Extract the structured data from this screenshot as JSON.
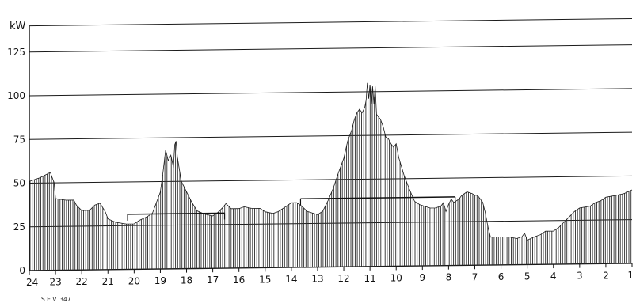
{
  "chart_data": {
    "type": "bar",
    "unit_label": "kW",
    "footnote": "S.E.V. 347",
    "ylim": [
      0,
      140
    ],
    "yticks": [
      0,
      25,
      50,
      75,
      100,
      125
    ],
    "ytick_labels": [
      "0",
      "25",
      "50",
      "75",
      "100",
      "125"
    ],
    "xlim": [
      24,
      1
    ],
    "xticks": [
      24,
      23,
      22,
      21,
      20,
      19,
      18,
      17,
      16,
      15,
      14,
      13,
      12,
      11,
      10,
      9,
      8,
      7,
      6,
      5,
      4,
      3,
      2,
      1
    ],
    "xtick_labels": [
      "24",
      "23",
      "22",
      "21",
      "20",
      "19",
      "18",
      "17",
      "16",
      "15",
      "14",
      "13",
      "12",
      "11",
      "10",
      "9",
      "8",
      "7",
      "6",
      "5",
      "4",
      "3",
      "2",
      "1"
    ],
    "grid": "horizontal",
    "profile": [
      [
        24.0,
        51
      ],
      [
        23.6,
        53
      ],
      [
        23.2,
        56
      ],
      [
        23.05,
        50
      ],
      [
        23.0,
        41
      ],
      [
        22.6,
        40
      ],
      [
        22.3,
        40
      ],
      [
        22.2,
        37
      ],
      [
        22.0,
        34
      ],
      [
        21.7,
        34
      ],
      [
        21.5,
        37
      ],
      [
        21.3,
        38
      ],
      [
        21.1,
        33
      ],
      [
        21.0,
        29
      ],
      [
        20.7,
        27
      ],
      [
        20.3,
        26
      ],
      [
        20.0,
        26
      ],
      [
        19.8,
        28
      ],
      [
        19.5,
        30
      ],
      [
        19.3,
        32
      ],
      [
        19.2,
        36
      ],
      [
        19.0,
        44
      ],
      [
        18.9,
        55
      ],
      [
        18.8,
        68
      ],
      [
        18.7,
        62
      ],
      [
        18.6,
        65
      ],
      [
        18.5,
        58
      ],
      [
        18.45,
        71
      ],
      [
        18.4,
        73
      ],
      [
        18.35,
        64
      ],
      [
        18.2,
        50
      ],
      [
        18.0,
        44
      ],
      [
        17.8,
        38
      ],
      [
        17.6,
        33
      ],
      [
        17.3,
        31
      ],
      [
        17.0,
        30
      ],
      [
        16.8,
        32
      ],
      [
        16.6,
        35
      ],
      [
        16.5,
        37
      ],
      [
        16.3,
        34
      ],
      [
        16.0,
        34
      ],
      [
        15.8,
        35
      ],
      [
        15.5,
        34
      ],
      [
        15.2,
        34
      ],
      [
        15.0,
        32
      ],
      [
        14.7,
        31
      ],
      [
        14.5,
        32
      ],
      [
        14.2,
        35
      ],
      [
        14.0,
        37
      ],
      [
        13.8,
        37
      ],
      [
        13.6,
        35
      ],
      [
        13.4,
        32
      ],
      [
        13.2,
        31
      ],
      [
        13.0,
        30
      ],
      [
        12.8,
        32
      ],
      [
        12.6,
        38
      ],
      [
        12.4,
        45
      ],
      [
        12.2,
        54
      ],
      [
        12.0,
        62
      ],
      [
        11.85,
        72
      ],
      [
        11.7,
        78
      ],
      [
        11.6,
        84
      ],
      [
        11.5,
        88
      ],
      [
        11.4,
        90
      ],
      [
        11.3,
        88
      ],
      [
        11.2,
        91
      ],
      [
        11.15,
        95
      ],
      [
        11.1,
        105
      ],
      [
        11.05,
        96
      ],
      [
        11.0,
        104
      ],
      [
        10.95,
        93
      ],
      [
        10.9,
        103
      ],
      [
        10.85,
        93
      ],
      [
        10.8,
        103
      ],
      [
        10.75,
        87
      ],
      [
        10.6,
        84
      ],
      [
        10.5,
        80
      ],
      [
        10.4,
        74
      ],
      [
        10.3,
        73
      ],
      [
        10.2,
        70
      ],
      [
        10.1,
        68
      ],
      [
        10.0,
        70
      ],
      [
        9.9,
        62
      ],
      [
        9.7,
        52
      ],
      [
        9.5,
        44
      ],
      [
        9.3,
        37
      ],
      [
        9.1,
        35
      ],
      [
        8.9,
        34
      ],
      [
        8.7,
        33
      ],
      [
        8.5,
        33
      ],
      [
        8.3,
        34
      ],
      [
        8.2,
        36
      ],
      [
        8.1,
        31
      ],
      [
        8.0,
        35
      ],
      [
        7.9,
        38
      ],
      [
        7.8,
        36
      ],
      [
        7.6,
        38
      ],
      [
        7.5,
        40
      ],
      [
        7.3,
        42
      ],
      [
        7.1,
        41
      ],
      [
        7.0,
        40
      ],
      [
        6.9,
        40
      ],
      [
        6.8,
        38
      ],
      [
        6.7,
        36
      ],
      [
        6.6,
        30
      ],
      [
        6.5,
        22
      ],
      [
        6.4,
        16
      ],
      [
        6.0,
        16
      ],
      [
        5.7,
        16
      ],
      [
        5.4,
        15
      ],
      [
        5.2,
        16
      ],
      [
        5.1,
        18
      ],
      [
        5.0,
        14
      ],
      [
        4.7,
        16
      ],
      [
        4.5,
        17
      ],
      [
        4.3,
        19
      ],
      [
        4.0,
        19
      ],
      [
        3.8,
        21
      ],
      [
        3.6,
        24
      ],
      [
        3.4,
        27
      ],
      [
        3.2,
        30
      ],
      [
        3.0,
        32
      ],
      [
        2.6,
        33
      ],
      [
        2.4,
        35
      ],
      [
        2.2,
        36
      ],
      [
        2.0,
        38
      ],
      [
        1.6,
        39
      ],
      [
        1.3,
        40
      ],
      [
        1.0,
        42
      ]
    ],
    "mean_lines": [
      {
        "x_from": 20.25,
        "x_to": 16.55,
        "value": 31.5
      },
      {
        "x_from": 13.65,
        "x_to": 7.75,
        "value": 39.2
      }
    ]
  }
}
